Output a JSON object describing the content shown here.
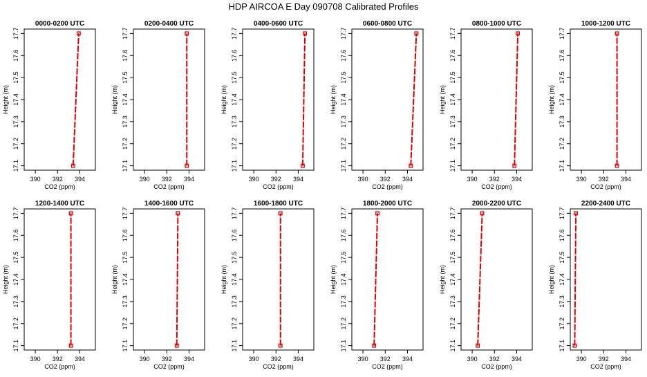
{
  "title": "HDP AIRCOA E  Day 090708  Calibrated Profiles",
  "chart_data": {
    "type": "line",
    "xlabel": "CO2 (ppm)",
    "ylabel": "Height (m)",
    "xlim": [
      389,
      395.4
    ],
    "ylim": [
      17.08,
      17.72
    ],
    "xticks": [
      390,
      392,
      394
    ],
    "yticks": [
      17.1,
      17.2,
      17.3,
      17.4,
      17.5,
      17.6,
      17.7
    ],
    "series_color": "#dd0000",
    "panels": [
      {
        "name": "0000-0200 UTC",
        "x": [
          393.4,
          393.9
        ],
        "y": [
          17.1,
          17.7
        ]
      },
      {
        "name": "0200-0400 UTC",
        "x": [
          393.8,
          393.8
        ],
        "y": [
          17.1,
          17.7
        ]
      },
      {
        "name": "0400-0600 UTC",
        "x": [
          394.4,
          394.6
        ],
        "y": [
          17.1,
          17.7
        ]
      },
      {
        "name": "0600-0800 UTC",
        "x": [
          394.3,
          394.8
        ],
        "y": [
          17.1,
          17.7
        ]
      },
      {
        "name": "0800-1000 UTC",
        "x": [
          393.8,
          394.1
        ],
        "y": [
          17.1,
          17.7
        ]
      },
      {
        "name": "1000-1200 UTC",
        "x": [
          393.2,
          393.2
        ],
        "y": [
          17.1,
          17.7
        ]
      },
      {
        "name": "1200-1400 UTC",
        "x": [
          393.2,
          393.2
        ],
        "y": [
          17.1,
          17.7
        ]
      },
      {
        "name": "1400-1600 UTC",
        "x": [
          392.9,
          393.0
        ],
        "y": [
          17.1,
          17.7
        ]
      },
      {
        "name": "1600-1800 UTC",
        "x": [
          392.4,
          392.4
        ],
        "y": [
          17.1,
          17.7
        ]
      },
      {
        "name": "1800-2000 UTC",
        "x": [
          391.0,
          391.3
        ],
        "y": [
          17.1,
          17.7
        ]
      },
      {
        "name": "2000-2200 UTC",
        "x": [
          390.5,
          390.9
        ],
        "y": [
          17.1,
          17.7
        ]
      },
      {
        "name": "2200-2400 UTC",
        "x": [
          389.4,
          389.5
        ],
        "y": [
          17.1,
          17.7
        ]
      }
    ]
  }
}
